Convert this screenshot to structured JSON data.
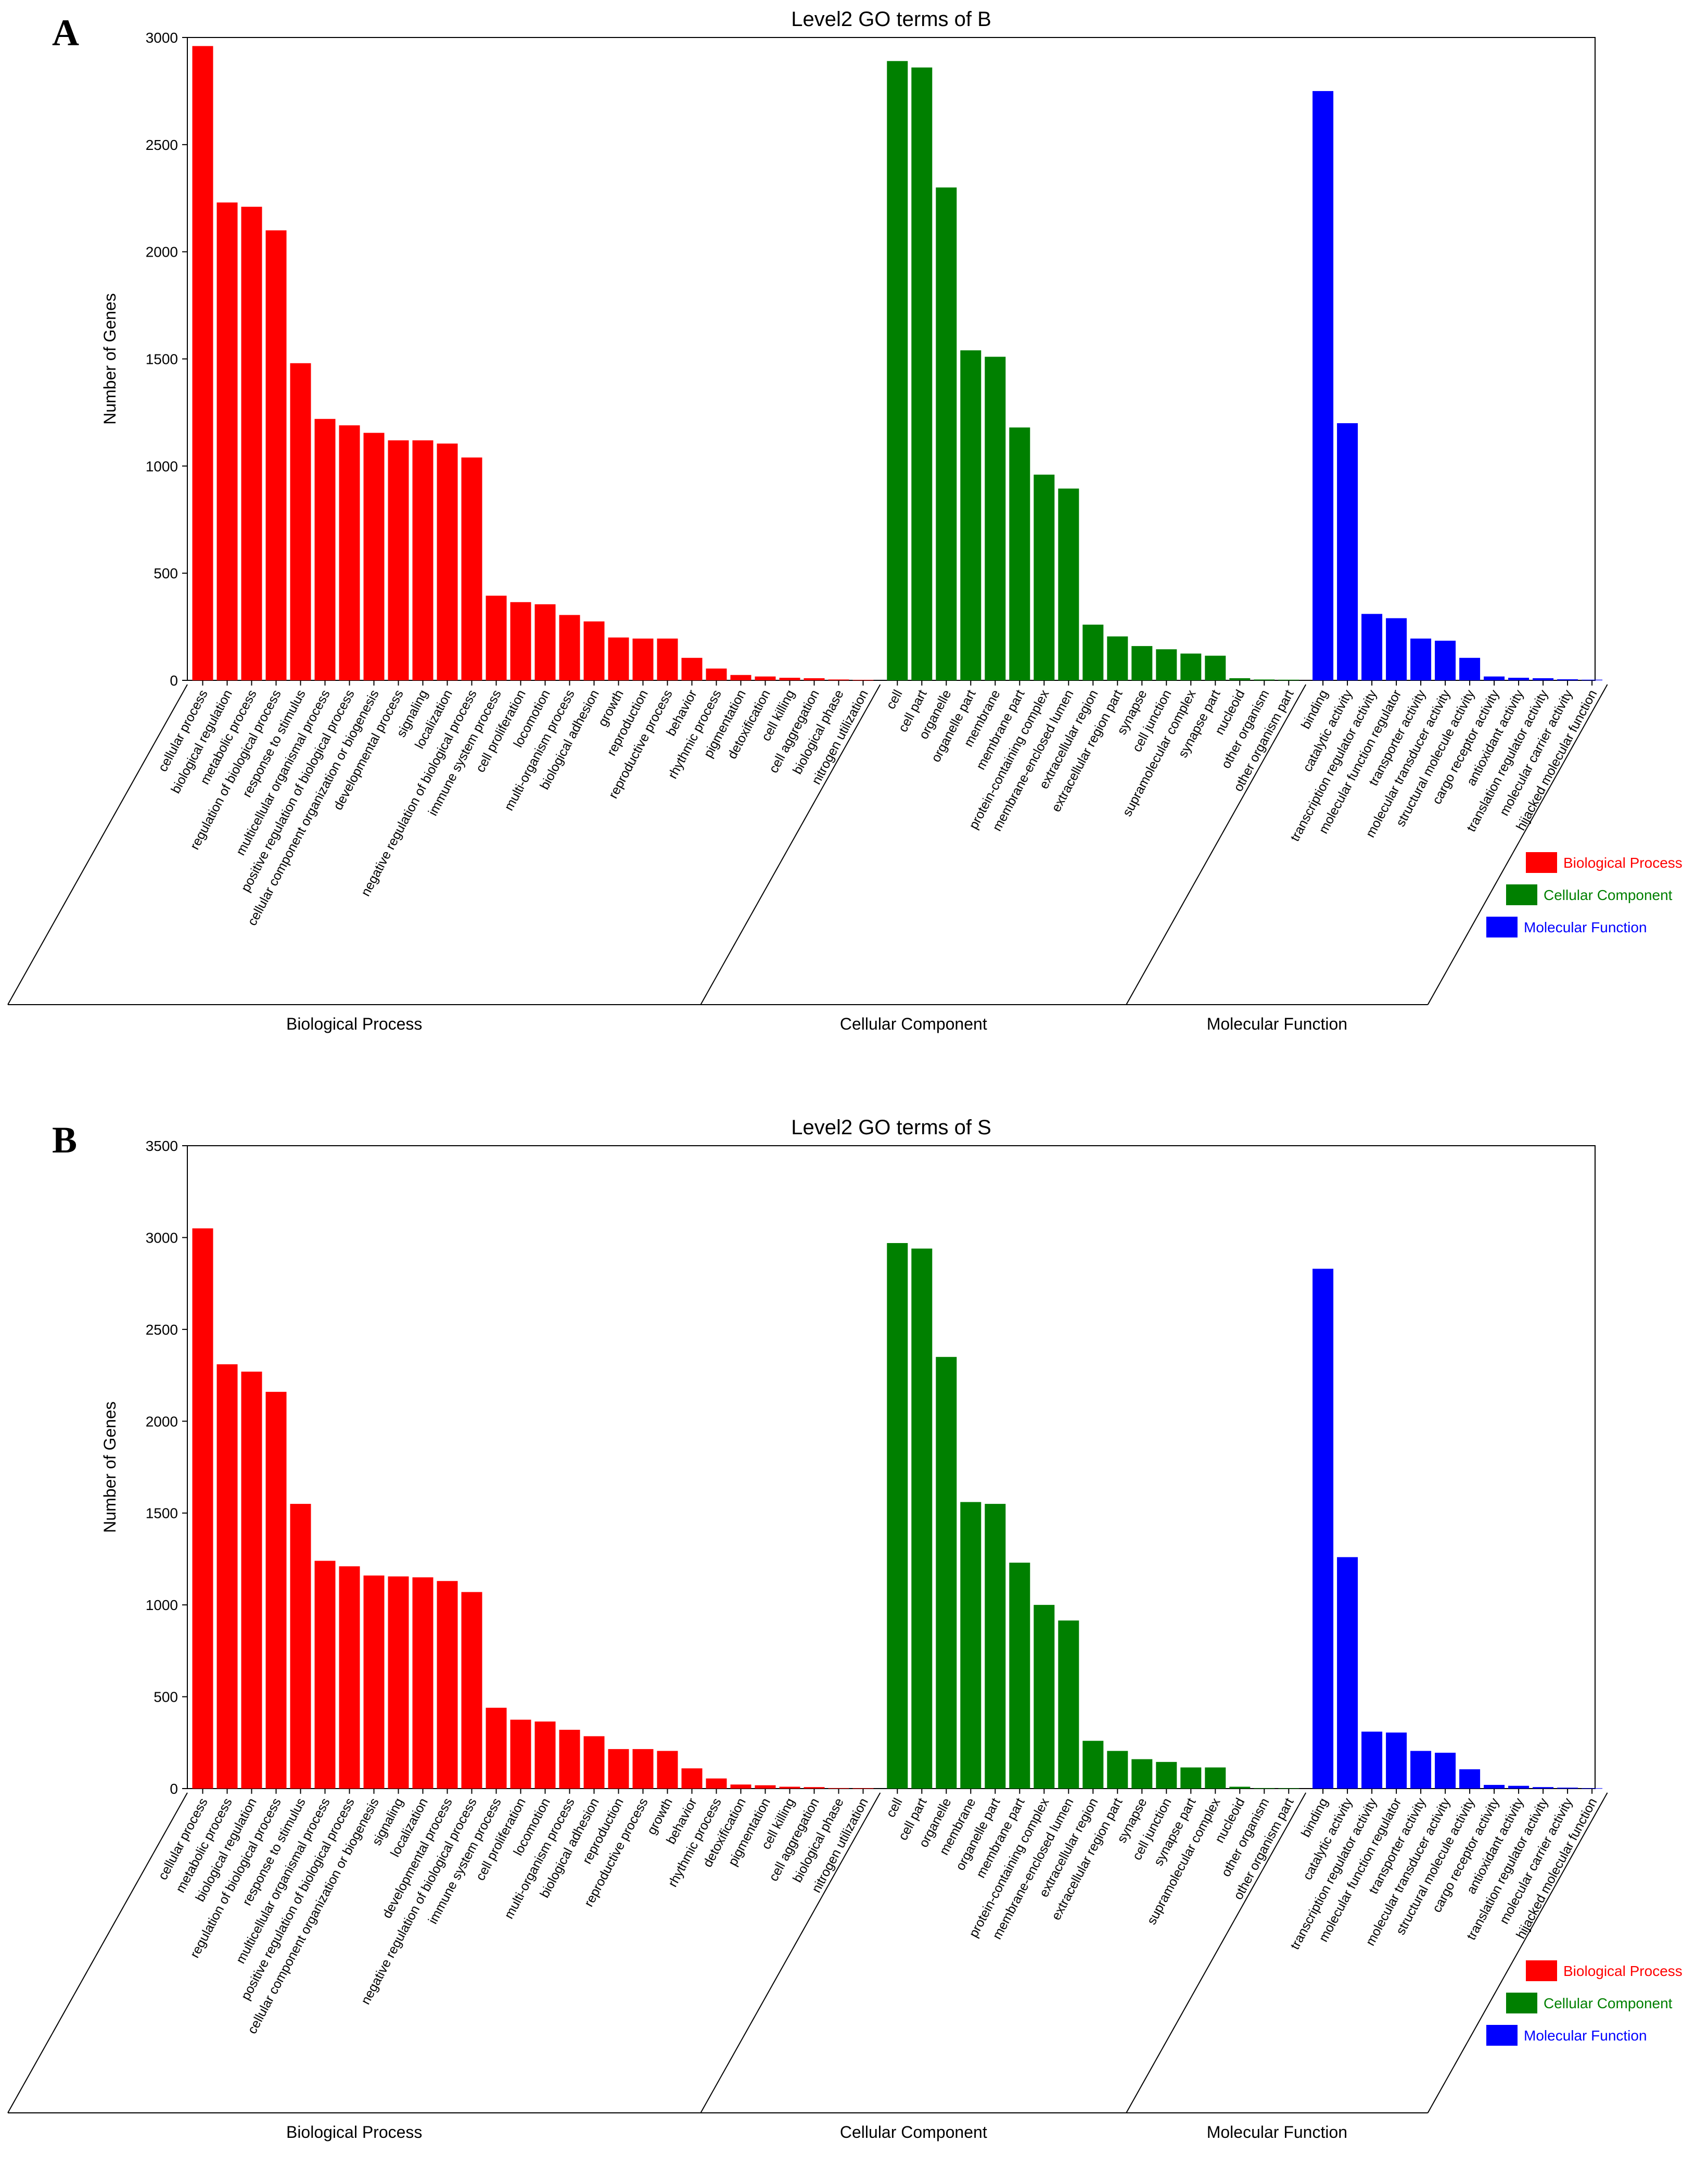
{
  "legend": [
    {
      "label": "Biological Process",
      "color": "#ff0000"
    },
    {
      "label": "Cellular Component",
      "color": "#008000"
    },
    {
      "label": "Molecular Function",
      "color": "#0000ff"
    }
  ],
  "chart_data": [
    {
      "panel": "A",
      "type": "bar",
      "title": "Level2 GO terms of B",
      "ylabel": "Number of Genes",
      "ylim": [
        0,
        3000
      ],
      "yticks": [
        0,
        500,
        1000,
        1500,
        2000,
        2500,
        3000
      ],
      "groups": [
        {
          "name": "Biological Process",
          "color": "#ff0000",
          "categories": [
            "cellular process",
            "biological regulation",
            "metabolic process",
            "regulation of biological process",
            "response to stimulus",
            "multicellular organismal process",
            "positive regulation of biological process",
            "cellular component organization or biogenesis",
            "developmental process",
            "signaling",
            "localization",
            "negative regulation of biological process",
            "immune system process",
            "cell proliferation",
            "locomotion",
            "multi-organism process",
            "biological adhesion",
            "growth",
            "reproduction",
            "reproductive process",
            "behavior",
            "rhythmic process",
            "pigmentation",
            "detoxification",
            "cell killing",
            "cell aggregation",
            "biological phase",
            "nitrogen utilization"
          ],
          "values": [
            2960,
            2230,
            2210,
            2100,
            1480,
            1220,
            1190,
            1155,
            1120,
            1120,
            1105,
            1040,
            395,
            365,
            355,
            305,
            275,
            200,
            195,
            195,
            105,
            55,
            25,
            18,
            12,
            10,
            4,
            2
          ]
        },
        {
          "name": "Cellular Component",
          "color": "#008000",
          "categories": [
            "cell",
            "cell part",
            "organelle",
            "organelle part",
            "membrane",
            "membrane part",
            "protein-containing complex",
            "membrane-enclosed lumen",
            "extracellular region",
            "extracellular region part",
            "synapse",
            "cell junction",
            "supramolecular complex",
            "synapse part",
            "nucleoid",
            "other organism",
            "other organism part"
          ],
          "values": [
            2890,
            2860,
            2300,
            1540,
            1510,
            1180,
            960,
            895,
            260,
            205,
            160,
            145,
            125,
            115,
            10,
            4,
            3
          ]
        },
        {
          "name": "Molecular Function",
          "color": "#0000ff",
          "categories": [
            "binding",
            "catalytic activity",
            "transcription regulator activity",
            "molecular function regulator",
            "transporter activity",
            "molecular transducer activity",
            "structural molecule activity",
            "cargo receptor activity",
            "antioxidant activity",
            "translation regulator activity",
            "molecular carrier activity",
            "hijacked molecular function"
          ],
          "values": [
            2750,
            1200,
            310,
            290,
            195,
            185,
            105,
            18,
            12,
            10,
            5,
            3
          ]
        }
      ]
    },
    {
      "panel": "B",
      "type": "bar",
      "title": "Level2 GO terms of S",
      "ylabel": "Number of Genes",
      "ylim": [
        0,
        3500
      ],
      "yticks": [
        0,
        500,
        1000,
        1500,
        2000,
        2500,
        3000,
        3500
      ],
      "groups": [
        {
          "name": "Biological Process",
          "color": "#ff0000",
          "categories": [
            "cellular process",
            "metabolic process",
            "biological regulation",
            "regulation of biological process",
            "response to stimulus",
            "multicellular organismal process",
            "positive regulation of biological process",
            "cellular component organization or biogenesis",
            "signaling",
            "localization",
            "developmental process",
            "negative regulation of biological process",
            "immune system process",
            "cell proliferation",
            "locomotion",
            "multi-organism process",
            "biological adhesion",
            "reproduction",
            "reproductive process",
            "growth",
            "behavior",
            "rhythmic process",
            "detoxification",
            "pigmentation",
            "cell killing",
            "cell aggregation",
            "biological phase",
            "nitrogen utilization"
          ],
          "values": [
            3050,
            2310,
            2270,
            2160,
            1550,
            1240,
            1210,
            1160,
            1155,
            1150,
            1130,
            1070,
            440,
            375,
            365,
            320,
            285,
            215,
            215,
            205,
            110,
            55,
            22,
            18,
            10,
            8,
            3,
            2
          ]
        },
        {
          "name": "Cellular Component",
          "color": "#008000",
          "categories": [
            "cell",
            "cell part",
            "organelle",
            "membrane",
            "organelle part",
            "membrane part",
            "protein-containing complex",
            "membrane-enclosed lumen",
            "extracellular region",
            "extracellular region part",
            "synapse",
            "cell junction",
            "synapse part",
            "supramolecular complex",
            "nucleoid",
            "other organism",
            "other organism part"
          ],
          "values": [
            2970,
            2940,
            2350,
            1560,
            1550,
            1230,
            1000,
            915,
            260,
            205,
            160,
            145,
            115,
            115,
            10,
            3,
            2
          ]
        },
        {
          "name": "Molecular Function",
          "color": "#0000ff",
          "categories": [
            "binding",
            "catalytic activity",
            "transcription regulator activity",
            "molecular function regulator",
            "transporter activity",
            "molecular transducer activity",
            "structural molecule activity",
            "cargo receptor activity",
            "antioxidant activity",
            "translation regulator activity",
            "molecular carrier activity",
            "hijacked molecular function"
          ],
          "values": [
            2830,
            1260,
            310,
            305,
            205,
            195,
            105,
            20,
            15,
            8,
            5,
            2
          ]
        }
      ]
    }
  ]
}
